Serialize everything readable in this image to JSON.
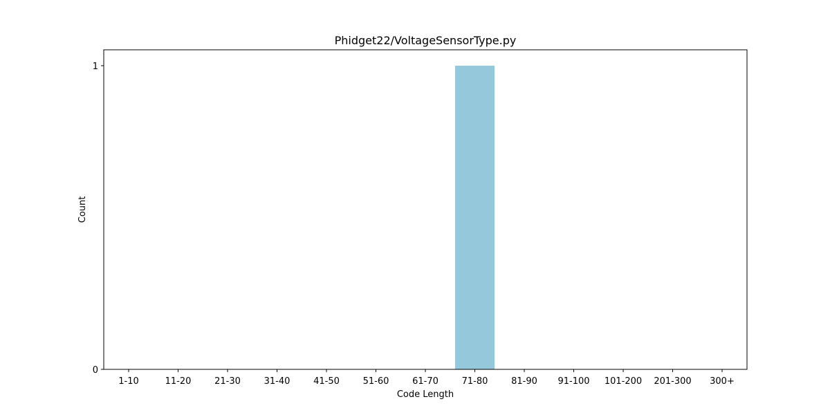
{
  "chart_data": {
    "type": "bar",
    "title": "Phidget22/VoltageSensorType.py",
    "xlabel": "Code Length",
    "ylabel": "Count",
    "categories": [
      "1-10",
      "11-20",
      "21-30",
      "31-40",
      "41-50",
      "51-60",
      "61-70",
      "71-80",
      "81-90",
      "91-100",
      "101-200",
      "201-300",
      "300+"
    ],
    "values": [
      0,
      0,
      0,
      0,
      0,
      0,
      0,
      1,
      0,
      0,
      0,
      0,
      0
    ],
    "ylim": [
      0,
      1
    ],
    "yticks": [
      "0",
      "1"
    ],
    "grid": false,
    "bar_color": "#96c8dc"
  }
}
